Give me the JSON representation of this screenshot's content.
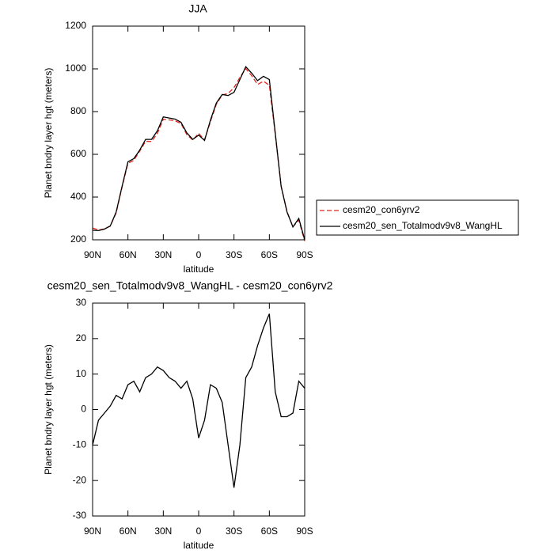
{
  "chart_data": [
    {
      "type": "line",
      "title": "JJA",
      "xlabel": "latitude",
      "ylabel": "Planet bndry layer hgt (meters)",
      "x": [
        90,
        85,
        80,
        75,
        70,
        65,
        60,
        55,
        50,
        45,
        40,
        35,
        30,
        25,
        20,
        15,
        10,
        5,
        0,
        -5,
        -10,
        -15,
        -20,
        -25,
        -30,
        -35,
        -40,
        -45,
        -50,
        -55,
        -60,
        -65,
        -70,
        -75,
        -80,
        -85,
        -90
      ],
      "xlim": [
        90,
        -90
      ],
      "xticks": [
        {
          "value": 90,
          "label": "90N"
        },
        {
          "value": 60,
          "label": "60N"
        },
        {
          "value": 30,
          "label": "30N"
        },
        0,
        {
          "value": -30,
          "label": "30S"
        },
        {
          "value": -60,
          "label": "60S"
        },
        {
          "value": -90,
          "label": "90S"
        }
      ],
      "ylim": [
        200,
        1200
      ],
      "yticks": [
        200,
        400,
        600,
        800,
        1000,
        1200
      ],
      "legend": "right",
      "series": [
        {
          "name": "cesm20_con6yrv2",
          "color": "#e0261f",
          "dash": "dashed",
          "values": [
            255,
            246,
            251,
            264,
            326,
            447,
            558,
            572,
            615,
            661,
            660,
            698,
            764,
            761,
            757,
            744,
            692,
            667,
            698,
            668,
            753,
            834,
            878,
            885,
            912,
            960,
            1001,
            968,
            927,
            942,
            923,
            695,
            452,
            332,
            261,
            292,
            194
          ]
        },
        {
          "name": "cesm20_sen_Totalmodv9v8_WangHL",
          "color": "#000000",
          "dash": "solid",
          "values": [
            245,
            243,
            250,
            265,
            330,
            450,
            565,
            580,
            620,
            670,
            670,
            710,
            775,
            770,
            765,
            750,
            700,
            670,
            690,
            665,
            760,
            840,
            880,
            875,
            890,
            950,
            1010,
            980,
            945,
            965,
            950,
            700,
            450,
            330,
            260,
            300,
            200
          ]
        }
      ]
    },
    {
      "type": "line",
      "title": "cesm20_sen_Totalmodv9v8_WangHL - cesm20_con6yrv2",
      "xlabel": "latitude",
      "ylabel": "Planet bndry layer hgt (meters)",
      "x": [
        90,
        85,
        80,
        75,
        70,
        65,
        60,
        55,
        50,
        45,
        40,
        35,
        30,
        25,
        20,
        15,
        10,
        5,
        0,
        -5,
        -10,
        -15,
        -20,
        -25,
        -30,
        -35,
        -40,
        -45,
        -50,
        -55,
        -60,
        -65,
        -70,
        -75,
        -80,
        -85,
        -90
      ],
      "xlim": [
        90,
        -90
      ],
      "xticks": [
        {
          "value": 90,
          "label": "90N"
        },
        {
          "value": 60,
          "label": "60N"
        },
        {
          "value": 30,
          "label": "30N"
        },
        0,
        {
          "value": -30,
          "label": "30S"
        },
        {
          "value": -60,
          "label": "60S"
        },
        {
          "value": -90,
          "label": "90S"
        }
      ],
      "ylim": [
        -30,
        30
      ],
      "yticks": [
        -30,
        -20,
        -10,
        0,
        10,
        20,
        30
      ],
      "color": "#000000",
      "values": [
        -10,
        -3,
        -1,
        1,
        4,
        3,
        7,
        8,
        5,
        9,
        10,
        12,
        11,
        9,
        8,
        6,
        8,
        3,
        -8,
        -3,
        7,
        6,
        2,
        -10,
        -22,
        -10,
        9,
        12,
        18,
        23,
        27,
        5,
        -2,
        -2,
        -1,
        8,
        6
      ]
    }
  ]
}
